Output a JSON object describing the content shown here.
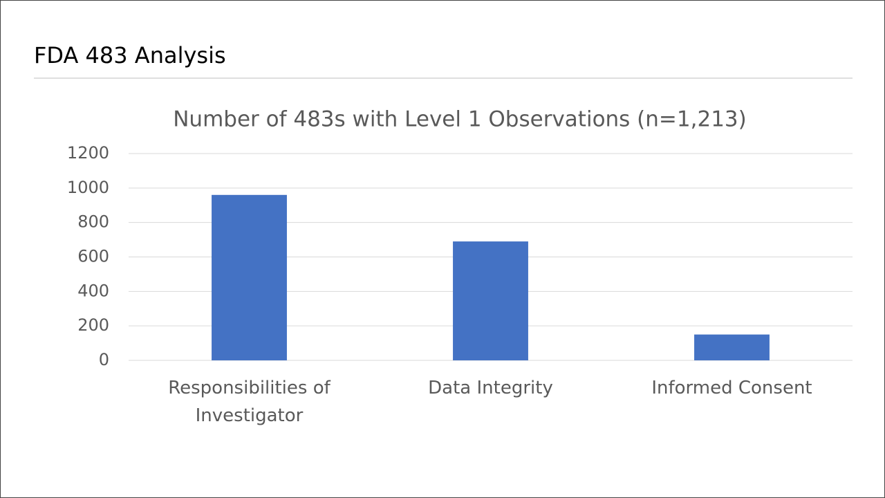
{
  "slide_title": "FDA 483 Analysis",
  "chart_data": {
    "type": "bar",
    "title": "Number of 483s with Level 1 Observations (n=1,213)",
    "categories": [
      "Responsibilities of Investigator",
      "Data Integrity",
      "Informed Consent"
    ],
    "values": [
      960,
      690,
      150
    ],
    "color": "#4472c4",
    "ylim": [
      0,
      1200
    ],
    "yticks": [
      0,
      200,
      400,
      600,
      800,
      1000,
      1200
    ],
    "grid": true
  }
}
